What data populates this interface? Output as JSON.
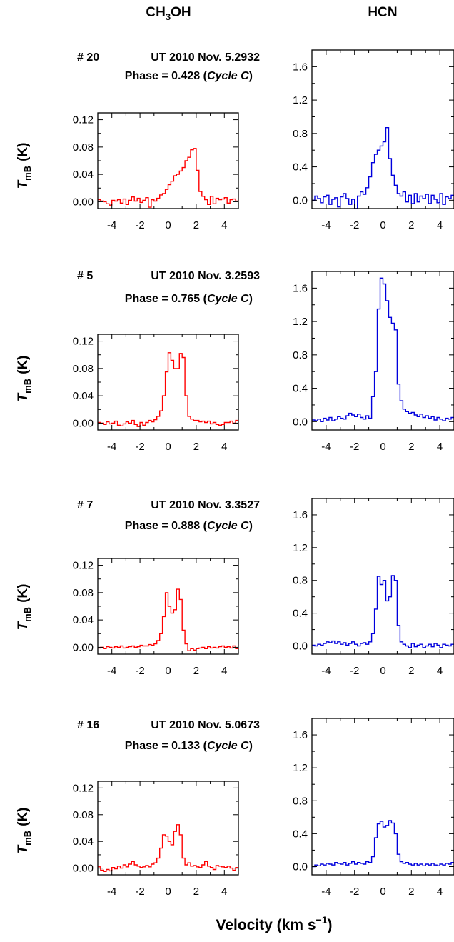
{
  "columns": {
    "left": {
      "base": "CH",
      "sub1": "3",
      "rest": "OH"
    },
    "right": {
      "title": "HCN"
    }
  },
  "y_label": {
    "T": "T",
    "sub": "mB",
    "unit": "(K)"
  },
  "x_label": {
    "text": "Velocity  (km s",
    "sup": "−1",
    "close": ")"
  },
  "panels": [
    {
      "id": "# 20",
      "time": "UT 2010 Nov. 5.2932",
      "phase_prefix": "Phase = 0.428  (",
      "cycle": "Cycle C",
      "phase_suffix": ")"
    },
    {
      "id": "# 5",
      "time": "UT 2010 Nov. 3.2593",
      "phase_prefix": "Phase = 0.765  (",
      "cycle": "Cycle C",
      "phase_suffix": ")"
    },
    {
      "id": "# 7",
      "time": "UT 2010 Nov. 3.3527",
      "phase_prefix": "Phase = 0.888  (",
      "cycle": "Cycle C",
      "phase_suffix": ")"
    },
    {
      "id": "# 16",
      "time": "UT 2010 Nov. 5.0673",
      "phase_prefix": "Phase = 0.133  (",
      "cycle": "Cycle C",
      "phase_suffix": ")"
    }
  ],
  "chart_data": [
    {
      "type": "line",
      "molecule": "CH3OH",
      "color": "#ff0000",
      "xlim": [
        -5,
        5
      ],
      "ylim": [
        -0.01,
        0.13
      ],
      "yticks": [
        0.0,
        0.04,
        0.08,
        0.12
      ],
      "ytick_labels": [
        "0.00",
        "0.04",
        "0.08",
        "0.12"
      ],
      "xticks": [
        -4,
        -2,
        0,
        2,
        4
      ],
      "xtick_labels": [
        "-4",
        "-2",
        "0",
        "2",
        "4"
      ],
      "x_start": -5.0,
      "x_step": 0.2,
      "series": [
        {
          "values": [
            0.003,
            0.001,
            0.0,
            -0.003,
            -0.005,
            0.002,
            0.001,
            0.003,
            -0.002,
            0.004,
            -0.004,
            0.002,
            0.007,
            0.001,
            0.005,
            -0.001,
            0.002,
            0.006,
            -0.008,
            0.003,
            0.001,
            0.005,
            0.01,
            0.012,
            0.018,
            0.025,
            0.03,
            0.038,
            0.04,
            0.045,
            0.05,
            0.06,
            0.065,
            0.076,
            0.078,
            0.046,
            0.015,
            0.008,
            0.003,
            -0.004,
            0.008,
            -0.003,
            0.005,
            0.003,
            0.004,
            0.006,
            -0.002,
            0.003,
            0.004,
            0.001
          ]
        }
      ]
    },
    {
      "type": "line",
      "molecule": "HCN",
      "color": "#0000dd",
      "xlim": [
        -5,
        5
      ],
      "ylim": [
        -0.1,
        1.8
      ],
      "yticks": [
        0.0,
        0.4,
        0.8,
        1.2,
        1.6
      ],
      "ytick_labels": [
        "0.0",
        "0.4",
        "0.8",
        "1.2",
        "1.6"
      ],
      "xticks": [
        -4,
        -2,
        0,
        2,
        4
      ],
      "xtick_labels": [
        "-4",
        "-2",
        "0",
        "2",
        "4"
      ],
      "x_start": -5.0,
      "x_step": 0.2,
      "series": [
        {
          "values": [
            0.0,
            0.05,
            0.02,
            -0.03,
            0.04,
            0.06,
            -0.05,
            0.01,
            0.03,
            -0.08,
            0.04,
            0.08,
            0.02,
            -0.05,
            0.01,
            -0.12,
            0.05,
            0.1,
            0.07,
            0.15,
            0.28,
            0.45,
            0.55,
            0.6,
            0.65,
            0.7,
            0.87,
            0.5,
            0.3,
            0.18,
            0.08,
            0.05,
            0.1,
            -0.02,
            0.06,
            -0.04,
            0.08,
            -0.02,
            0.05,
            0.02,
            0.07,
            -0.04,
            0.06,
            0.01,
            -0.03,
            0.08,
            -0.05,
            0.04,
            0.02,
            0.06
          ]
        }
      ]
    },
    {
      "type": "line",
      "molecule": "CH3OH",
      "color": "#ff0000",
      "xlim": [
        -5,
        5
      ],
      "ylim": [
        -0.01,
        0.13
      ],
      "yticks": [
        0.0,
        0.04,
        0.08,
        0.12
      ],
      "ytick_labels": [
        "0.00",
        "0.04",
        "0.08",
        "0.12"
      ],
      "xticks": [
        -4,
        -2,
        0,
        2,
        4
      ],
      "xtick_labels": [
        "-4",
        "-2",
        "0",
        "2",
        "4"
      ],
      "x_start": -5.0,
      "x_step": 0.2,
      "series": [
        {
          "values": [
            0.001,
            0.0,
            -0.002,
            0.002,
            -0.001,
            0.0,
            0.003,
            -0.003,
            -0.004,
            -0.001,
            0.002,
            0.0,
            0.004,
            -0.002,
            -0.005,
            0.001,
            -0.003,
            0.001,
            0.004,
            0.002,
            0.005,
            0.01,
            0.018,
            0.04,
            0.075,
            0.103,
            0.092,
            0.08,
            0.08,
            0.102,
            0.096,
            0.04,
            0.01,
            0.006,
            0.004,
            0.004,
            0.002,
            0.003,
            0.001,
            0.003,
            -0.001,
            0.001,
            -0.002,
            -0.003,
            -0.002,
            0.001,
            0.001,
            0.003,
            0.0,
            0.004
          ]
        }
      ]
    },
    {
      "type": "line",
      "molecule": "HCN",
      "color": "#0000dd",
      "xlim": [
        -5,
        5
      ],
      "ylim": [
        -0.1,
        1.8
      ],
      "yticks": [
        0.0,
        0.4,
        0.8,
        1.2,
        1.6
      ],
      "ytick_labels": [
        "0.0",
        "0.4",
        "0.8",
        "1.2",
        "1.6"
      ],
      "xticks": [
        -4,
        -2,
        0,
        2,
        4
      ],
      "xtick_labels": [
        "-4",
        "-2",
        "0",
        "2",
        "4"
      ],
      "x_start": -5.0,
      "x_step": 0.2,
      "series": [
        {
          "values": [
            0.02,
            0.01,
            0.03,
            0.0,
            0.04,
            0.02,
            0.05,
            0.01,
            0.03,
            0.06,
            0.04,
            0.03,
            0.07,
            0.1,
            0.08,
            0.06,
            0.09,
            0.05,
            0.03,
            0.07,
            0.04,
            0.3,
            0.6,
            1.35,
            1.72,
            1.65,
            1.45,
            1.25,
            1.18,
            1.1,
            0.45,
            0.25,
            0.15,
            0.12,
            0.1,
            0.11,
            0.08,
            0.06,
            0.09,
            0.05,
            0.07,
            0.04,
            0.06,
            0.02,
            0.05,
            0.03,
            0.01,
            0.04,
            0.03,
            0.05
          ]
        }
      ]
    },
    {
      "type": "line",
      "molecule": "CH3OH",
      "color": "#ff0000",
      "xlim": [
        -5,
        5
      ],
      "ylim": [
        -0.01,
        0.13
      ],
      "yticks": [
        0.0,
        0.04,
        0.08,
        0.12
      ],
      "ytick_labels": [
        "0.00",
        "0.04",
        "0.08",
        "0.12"
      ],
      "xticks": [
        -4,
        -2,
        0,
        2,
        4
      ],
      "xtick_labels": [
        "-4",
        "-2",
        "0",
        "2",
        "4"
      ],
      "x_start": -5.0,
      "x_step": 0.2,
      "series": [
        {
          "values": [
            -0.001,
            0.0,
            -0.002,
            0.001,
            0.0,
            -0.001,
            0.001,
            0.0,
            0.002,
            -0.001,
            0.0,
            0.001,
            0.002,
            0.0,
            0.001,
            0.003,
            0.002,
            0.002,
            0.004,
            0.003,
            0.005,
            0.01,
            0.02,
            0.045,
            0.08,
            0.06,
            0.05,
            0.055,
            0.085,
            0.07,
            0.025,
            0.005,
            -0.005,
            -0.002,
            -0.004,
            -0.002,
            -0.001,
            0.0,
            -0.002,
            0.001,
            -0.001,
            0.0,
            -0.001,
            0.001,
            0.002,
            0.0,
            0.001,
            -0.001,
            0.002,
            -0.002
          ]
        }
      ]
    },
    {
      "type": "line",
      "molecule": "HCN",
      "color": "#0000dd",
      "xlim": [
        -5,
        5
      ],
      "ylim": [
        -0.1,
        1.8
      ],
      "yticks": [
        0.0,
        0.4,
        0.8,
        1.2,
        1.6
      ],
      "ytick_labels": [
        "0.0",
        "0.4",
        "0.8",
        "1.2",
        "1.6"
      ],
      "xticks": [
        -4,
        -2,
        0,
        2,
        4
      ],
      "xtick_labels": [
        "-4",
        "-2",
        "0",
        "2",
        "4"
      ],
      "x_start": -5.0,
      "x_step": 0.2,
      "series": [
        {
          "values": [
            0.01,
            0.0,
            0.02,
            0.01,
            0.03,
            0.05,
            0.04,
            0.06,
            0.03,
            0.05,
            0.02,
            0.04,
            0.01,
            0.03,
            0.05,
            0.02,
            0.0,
            0.03,
            0.04,
            0.02,
            0.05,
            0.15,
            0.45,
            0.85,
            0.75,
            0.8,
            0.55,
            0.6,
            0.86,
            0.8,
            0.25,
            0.05,
            0.02,
            0.0,
            -0.02,
            0.03,
            -0.01,
            0.01,
            0.02,
            -0.02,
            0.0,
            0.02,
            -0.01,
            0.03,
            0.01,
            -0.02,
            0.02,
            0.01,
            0.0,
            0.02
          ]
        }
      ]
    },
    {
      "type": "line",
      "molecule": "CH3OH",
      "color": "#ff0000",
      "xlim": [
        -5,
        5
      ],
      "ylim": [
        -0.01,
        0.13
      ],
      "yticks": [
        0.0,
        0.04,
        0.08,
        0.12
      ],
      "ytick_labels": [
        "0.00",
        "0.04",
        "0.08",
        "0.12"
      ],
      "xticks": [
        -4,
        -2,
        0,
        2,
        4
      ],
      "xtick_labels": [
        "-4",
        "-2",
        "0",
        "2",
        "4"
      ],
      "x_start": -5.0,
      "x_step": 0.2,
      "series": [
        {
          "values": [
            0.002,
            -0.003,
            -0.005,
            -0.002,
            -0.004,
            0.001,
            -0.001,
            0.003,
            0.0,
            0.005,
            0.002,
            0.006,
            0.01,
            0.005,
            0.003,
            0.001,
            0.002,
            0.004,
            0.002,
            0.006,
            0.008,
            0.015,
            0.03,
            0.05,
            0.048,
            0.04,
            0.035,
            0.055,
            0.065,
            0.05,
            0.015,
            0.005,
            0.008,
            0.003,
            0.004,
            0.002,
            0.001,
            0.005,
            0.01,
            0.003,
            0.001,
            -0.002,
            0.004,
            0.003,
            0.002,
            0.001,
            0.003,
            0.0,
            -0.003,
            0.001
          ]
        }
      ]
    },
    {
      "type": "line",
      "molecule": "HCN",
      "color": "#0000dd",
      "xlim": [
        -5,
        5
      ],
      "ylim": [
        -0.1,
        1.8
      ],
      "yticks": [
        0.0,
        0.4,
        0.8,
        1.2,
        1.6
      ],
      "ytick_labels": [
        "0.0",
        "0.4",
        "0.8",
        "1.2",
        "1.6"
      ],
      "xticks": [
        -4,
        -2,
        0,
        2,
        4
      ],
      "xtick_labels": [
        "-4",
        "-2",
        "0",
        "2",
        "4"
      ],
      "x_start": -5.0,
      "x_step": 0.2,
      "series": [
        {
          "values": [
            0.0,
            0.02,
            0.01,
            0.03,
            0.02,
            0.04,
            0.03,
            0.02,
            0.05,
            0.04,
            0.03,
            0.05,
            0.02,
            0.04,
            0.06,
            0.03,
            0.05,
            0.04,
            0.03,
            0.06,
            0.05,
            0.12,
            0.35,
            0.52,
            0.55,
            0.48,
            0.5,
            0.56,
            0.53,
            0.4,
            0.15,
            0.06,
            0.04,
            0.05,
            0.03,
            0.02,
            0.04,
            0.02,
            0.03,
            0.01,
            0.03,
            0.02,
            0.04,
            0.02,
            0.01,
            0.03,
            0.02,
            0.04,
            0.03,
            0.05
          ]
        }
      ]
    }
  ]
}
